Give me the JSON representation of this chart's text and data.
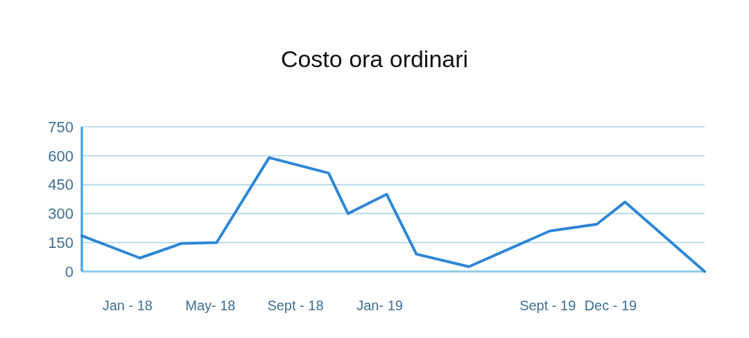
{
  "chart_data": {
    "type": "line",
    "title": "Costo ora ordinari",
    "x": [
      "2017-10-27",
      "2018-01-19",
      "2018-03-20",
      "2018-05-10",
      "2018-07-25",
      "2018-10-19",
      "2018-11-16",
      "2019-01-11",
      "2019-02-23",
      "2019-05-10",
      "2019-09-04",
      "2019-11-11",
      "2019-12-22",
      "2020-04-15"
    ],
    "values": [
      185,
      70,
      145,
      150,
      590,
      510,
      300,
      400,
      90,
      25,
      210,
      245,
      360,
      0
    ],
    "color": "#2e86d6",
    "xlim": [
      "2017-10-27",
      "2020-04-15"
    ],
    "xticks": [
      {
        "value": "2018-01-01",
        "label": "Jan - 18"
      },
      {
        "value": "2018-05-01",
        "label": "May- 18"
      },
      {
        "value": "2018-09-01",
        "label": "Sept - 18"
      },
      {
        "value": "2019-01-01",
        "label": "Jan- 19"
      },
      {
        "value": "2019-09-01",
        "label": "Sept - 19"
      },
      {
        "value": "2019-12-01",
        "label": "Dec - 19"
      }
    ],
    "ylim": [
      0,
      750
    ],
    "yticks": [
      0,
      150,
      300,
      450,
      600,
      750
    ],
    "grid": "y"
  }
}
